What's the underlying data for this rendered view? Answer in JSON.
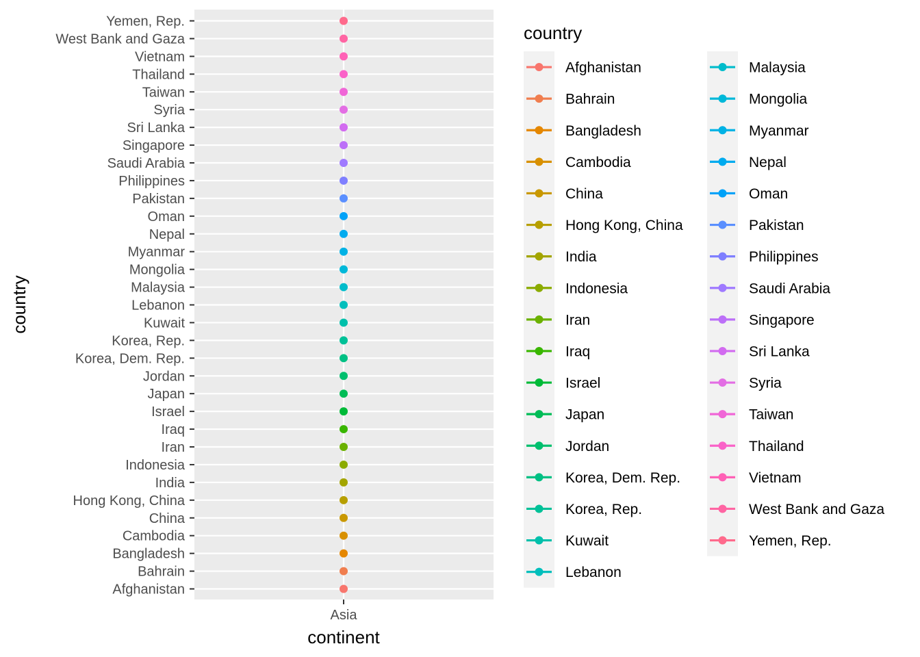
{
  "chart_data": {
    "type": "scatter",
    "xlabel": "continent",
    "ylabel": "country",
    "x_categories": [
      "Asia"
    ],
    "y_categories": [
      "Afghanistan",
      "Bahrain",
      "Bangladesh",
      "Cambodia",
      "China",
      "Hong Kong, China",
      "India",
      "Indonesia",
      "Iran",
      "Iraq",
      "Israel",
      "Japan",
      "Jordan",
      "Korea, Dem. Rep.",
      "Korea, Rep.",
      "Kuwait",
      "Lebanon",
      "Malaysia",
      "Mongolia",
      "Myanmar",
      "Nepal",
      "Oman",
      "Pakistan",
      "Philippines",
      "Saudi Arabia",
      "Singapore",
      "Sri Lanka",
      "Syria",
      "Taiwan",
      "Thailand",
      "Vietnam",
      "West Bank and Gaza",
      "Yemen, Rep."
    ],
    "points": [
      {
        "x": "Asia",
        "y": "Afghanistan",
        "color": "#F8766D"
      },
      {
        "x": "Asia",
        "y": "Bahrain",
        "color": "#F07E4F"
      },
      {
        "x": "Asia",
        "y": "Bangladesh",
        "color": "#E58700"
      },
      {
        "x": "Asia",
        "y": "Cambodia",
        "color": "#D89000"
      },
      {
        "x": "Asia",
        "y": "China",
        "color": "#C99800"
      },
      {
        "x": "Asia",
        "y": "Hong Kong, China",
        "color": "#B79F00"
      },
      {
        "x": "Asia",
        "y": "India",
        "color": "#A3A500"
      },
      {
        "x": "Asia",
        "y": "Indonesia",
        "color": "#8BAB00"
      },
      {
        "x": "Asia",
        "y": "Iran",
        "color": "#6BB100"
      },
      {
        "x": "Asia",
        "y": "Iraq",
        "color": "#39B600"
      },
      {
        "x": "Asia",
        "y": "Israel",
        "color": "#00BA38"
      },
      {
        "x": "Asia",
        "y": "Japan",
        "color": "#00BC56"
      },
      {
        "x": "Asia",
        "y": "Jordan",
        "color": "#00BF6E"
      },
      {
        "x": "Asia",
        "y": "Korea, Dem. Rep.",
        "color": "#00C084"
      },
      {
        "x": "Asia",
        "y": "Korea, Rep.",
        "color": "#00C198"
      },
      {
        "x": "Asia",
        "y": "Kuwait",
        "color": "#00C0AB"
      },
      {
        "x": "Asia",
        "y": "Lebanon",
        "color": "#00BFBC"
      },
      {
        "x": "Asia",
        "y": "Malaysia",
        "color": "#00BCCB"
      },
      {
        "x": "Asia",
        "y": "Mongolia",
        "color": "#00B8D9"
      },
      {
        "x": "Asia",
        "y": "Myanmar",
        "color": "#00B2E5"
      },
      {
        "x": "Asia",
        "y": "Nepal",
        "color": "#00ABEF"
      },
      {
        "x": "Asia",
        "y": "Oman",
        "color": "#00A2F8"
      },
      {
        "x": "Asia",
        "y": "Pakistan",
        "color": "#5A8FFF"
      },
      {
        "x": "Asia",
        "y": "Philippines",
        "color": "#7F7FFF"
      },
      {
        "x": "Asia",
        "y": "Saudi Arabia",
        "color": "#9F7AFF"
      },
      {
        "x": "Asia",
        "y": "Singapore",
        "color": "#BC6FF8"
      },
      {
        "x": "Asia",
        "y": "Sri Lanka",
        "color": "#D26BF0"
      },
      {
        "x": "Asia",
        "y": "Syria",
        "color": "#E36EE4"
      },
      {
        "x": "Asia",
        "y": "Taiwan",
        "color": "#F066D7"
      },
      {
        "x": "Asia",
        "y": "Thailand",
        "color": "#FA62C8"
      },
      {
        "x": "Asia",
        "y": "Vietnam",
        "color": "#FF61B6"
      },
      {
        "x": "Asia",
        "y": "West Bank and Gaza",
        "color": "#FF65A3"
      },
      {
        "x": "Asia",
        "y": "Yemen, Rep.",
        "color": "#FF6A8C"
      }
    ],
    "legend": {
      "title": "country",
      "placement": "right",
      "columns": 2,
      "entries": [
        {
          "label": "Afghanistan",
          "color": "#F8766D"
        },
        {
          "label": "Bahrain",
          "color": "#F07E4F"
        },
        {
          "label": "Bangladesh",
          "color": "#E58700"
        },
        {
          "label": "Cambodia",
          "color": "#D89000"
        },
        {
          "label": "China",
          "color": "#C99800"
        },
        {
          "label": "Hong Kong, China",
          "color": "#B79F00"
        },
        {
          "label": "India",
          "color": "#A3A500"
        },
        {
          "label": "Indonesia",
          "color": "#8BAB00"
        },
        {
          "label": "Iran",
          "color": "#6BB100"
        },
        {
          "label": "Iraq",
          "color": "#39B600"
        },
        {
          "label": "Israel",
          "color": "#00BA38"
        },
        {
          "label": "Japan",
          "color": "#00BC56"
        },
        {
          "label": "Jordan",
          "color": "#00BF6E"
        },
        {
          "label": "Korea, Dem. Rep.",
          "color": "#00C084"
        },
        {
          "label": "Korea, Rep.",
          "color": "#00C198"
        },
        {
          "label": "Kuwait",
          "color": "#00C0AB"
        },
        {
          "label": "Lebanon",
          "color": "#00BFBC"
        },
        {
          "label": "Malaysia",
          "color": "#00BCCB"
        },
        {
          "label": "Mongolia",
          "color": "#00B8D9"
        },
        {
          "label": "Myanmar",
          "color": "#00B2E5"
        },
        {
          "label": "Nepal",
          "color": "#00ABEF"
        },
        {
          "label": "Oman",
          "color": "#00A2F8"
        },
        {
          "label": "Pakistan",
          "color": "#5A8FFF"
        },
        {
          "label": "Philippines",
          "color": "#7F7FFF"
        },
        {
          "label": "Saudi Arabia",
          "color": "#9F7AFF"
        },
        {
          "label": "Singapore",
          "color": "#BC6FF8"
        },
        {
          "label": "Sri Lanka",
          "color": "#D26BF0"
        },
        {
          "label": "Syria",
          "color": "#E36EE4"
        },
        {
          "label": "Taiwan",
          "color": "#F066D7"
        },
        {
          "label": "Thailand",
          "color": "#FA62C8"
        },
        {
          "label": "Vietnam",
          "color": "#FF61B6"
        },
        {
          "label": "West Bank and Gaza",
          "color": "#FF65A3"
        },
        {
          "label": "Yemen, Rep.",
          "color": "#FF6A8C"
        }
      ]
    },
    "grid": true,
    "panel_background": "#EBEBEB",
    "grid_color": "#FFFFFF"
  }
}
